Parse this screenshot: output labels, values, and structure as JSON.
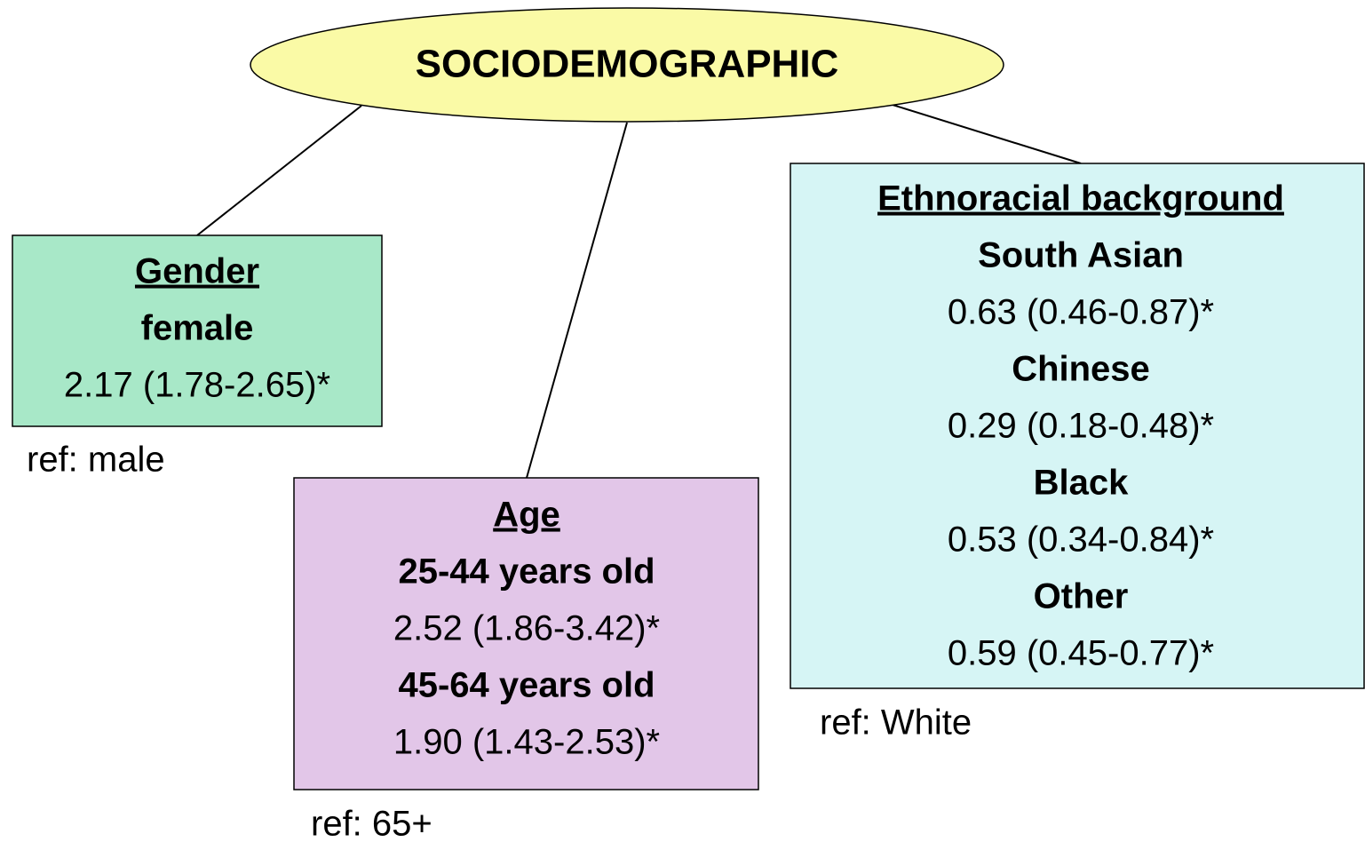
{
  "title": "SOCIODEMOGRAPHIC",
  "nodes": [
    {
      "heading": "Gender",
      "items": [
        {
          "label": "female",
          "value": "2.17 (1.78-2.65)*"
        }
      ],
      "ref": "ref: male"
    },
    {
      "heading": "Age",
      "items": [
        {
          "label": "25-44 years old",
          "value": "2.52 (1.86-3.42)*"
        },
        {
          "label": "45-64 years old",
          "value": "1.90 (1.43-2.53)*"
        }
      ],
      "ref": "ref: 65+"
    },
    {
      "heading": "Ethnoracial background",
      "items": [
        {
          "label": "South Asian",
          "value": "0.63 (0.46-0.87)*"
        },
        {
          "label": "Chinese",
          "value": "0.29 (0.18-0.48)*"
        },
        {
          "label": "Black",
          "value": "0.53 (0.34-0.84)*"
        },
        {
          "label": "Other",
          "value": "0.59 (0.45-0.77)*"
        }
      ],
      "ref": "ref: White"
    }
  ]
}
